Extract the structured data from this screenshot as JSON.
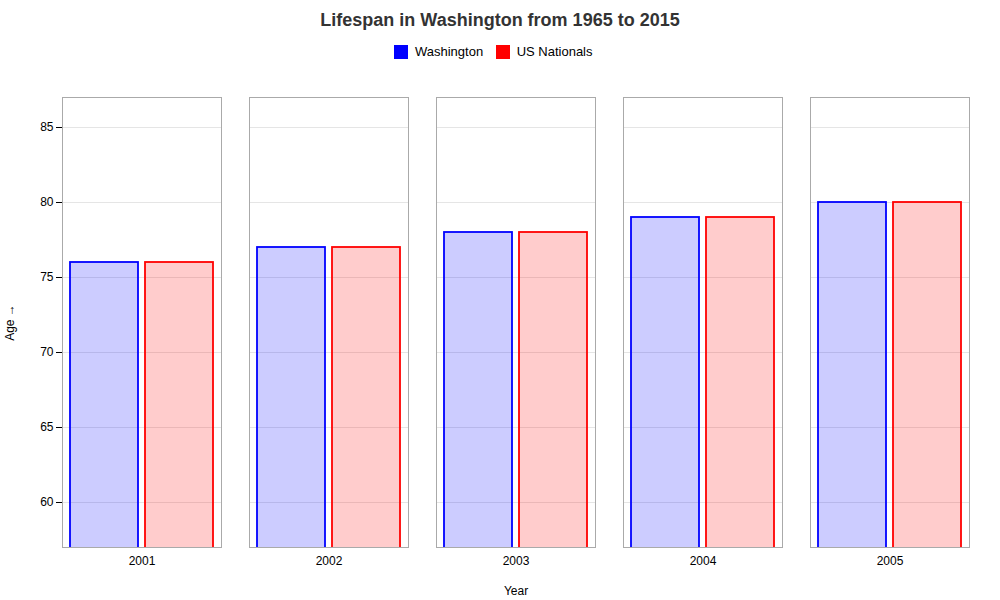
{
  "chart_data": {
    "type": "bar",
    "title": "Lifespan in Washington from 1965 to 2015",
    "x_label": "Year",
    "y_label": "Age",
    "categories": [
      "2001",
      "2002",
      "2003",
      "2004",
      "2005"
    ],
    "series": [
      {
        "name": "Washington",
        "color": "#0000ff",
        "values": [
          76,
          77,
          78,
          79,
          80
        ]
      },
      {
        "name": "US Nationals",
        "color": "#ff0000",
        "values": [
          76,
          77,
          78,
          79,
          80
        ]
      }
    ],
    "ylim": [
      57,
      87
    ],
    "yticks": [
      60,
      65,
      70,
      75,
      80,
      85
    ],
    "grid": true,
    "legend": "top"
  }
}
